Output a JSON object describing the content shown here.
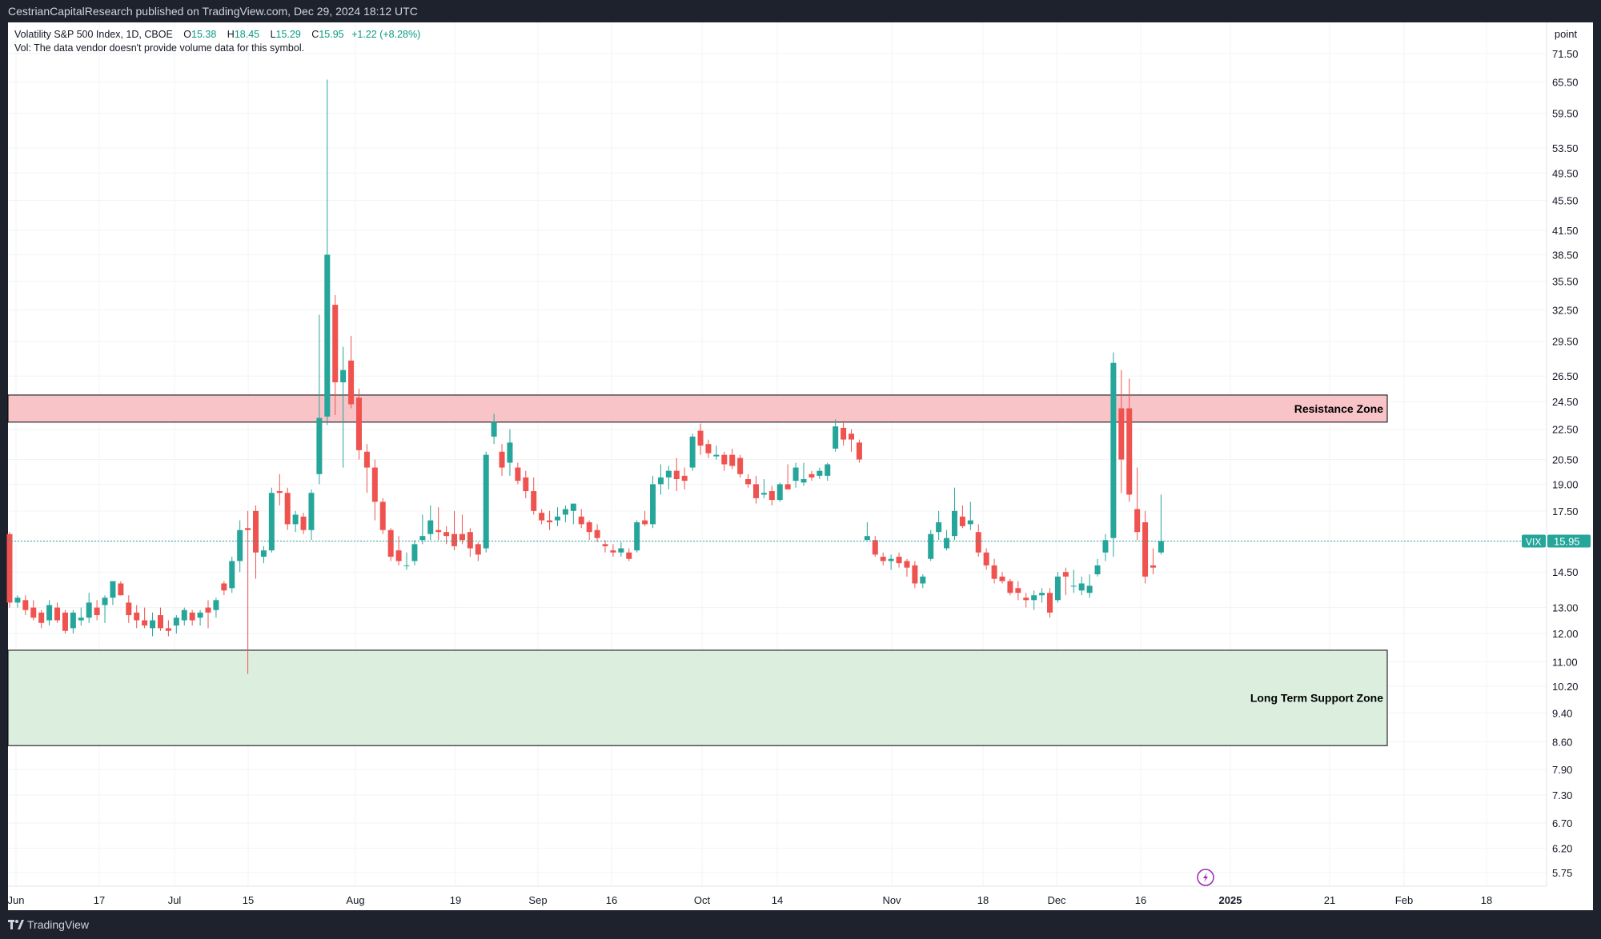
{
  "header": {
    "published": "CestrianCapitalResearch published on TradingView.com, Dec 29, 2024 18:12 UTC"
  },
  "legend": {
    "symbol": "Volatility S&P 500 Index, 1D, CBOE",
    "open_label": "O",
    "open": "15.38",
    "high_label": "H",
    "high": "18.45",
    "low_label": "L",
    "low": "15.29",
    "close_label": "C",
    "close": "15.95",
    "change": "+1.22 (+8.28%)",
    "vol_note": "Vol: The data vendor doesn't provide volume data for this symbol."
  },
  "footer": {
    "brand": "TradingView"
  },
  "price_tag": {
    "ticker": "VIX",
    "value": "15.95"
  },
  "colors": {
    "up": "#26a69a",
    "down": "#ef5350",
    "resistance_fill": "#f8c4c8",
    "support_fill": "#dcefdf",
    "price_line": "#26a69a"
  },
  "chart_data": {
    "type": "candlestick",
    "title": "Volatility S&P 500 Index, 1D, CBOE",
    "y_axis_unit": "point",
    "y_scale": "log",
    "y_ticks": [
      "71.50",
      "65.50",
      "59.50",
      "53.50",
      "49.50",
      "45.50",
      "41.50",
      "38.50",
      "35.50",
      "32.50",
      "29.50",
      "26.50",
      "24.50",
      "22.50",
      "20.50",
      "19.00",
      "17.50",
      "15.95",
      "14.50",
      "13.00",
      "12.00",
      "11.00",
      "10.20",
      "9.40",
      "8.60",
      "7.90",
      "7.30",
      "6.70",
      "6.20",
      "5.75"
    ],
    "x_tick_labels": [
      "Jun",
      "17",
      "Jul",
      "15",
      "Aug",
      "19",
      "Sep",
      "16",
      "Oct",
      "14",
      "Nov",
      "18",
      "Dec",
      "16",
      "2025",
      "21",
      "Feb",
      "18"
    ],
    "zones": [
      {
        "label": "Resistance Zone",
        "low": 23.0,
        "high": 25.0
      },
      {
        "label": "Long Term Support Zone",
        "low": 8.5,
        "high": 11.4
      }
    ],
    "last_price": 15.95,
    "candles": [
      [
        16.3,
        16.4,
        13.0,
        13.2
      ],
      [
        13.2,
        13.5,
        13.0,
        13.4
      ],
      [
        13.3,
        13.5,
        12.7,
        12.9
      ],
      [
        13.0,
        13.3,
        12.5,
        12.6
      ],
      [
        12.8,
        12.9,
        12.2,
        12.4
      ],
      [
        12.5,
        13.3,
        12.3,
        13.1
      ],
      [
        13.0,
        13.2,
        12.4,
        12.5
      ],
      [
        12.8,
        12.9,
        12.0,
        12.1
      ],
      [
        12.2,
        12.9,
        12.0,
        12.8
      ],
      [
        12.5,
        13.0,
        12.3,
        12.6
      ],
      [
        12.6,
        13.6,
        12.4,
        13.2
      ],
      [
        13.0,
        13.3,
        12.5,
        12.7
      ],
      [
        13.1,
        13.5,
        12.4,
        13.4
      ],
      [
        13.4,
        14.0,
        13.1,
        14.1
      ],
      [
        14.0,
        14.1,
        13.5,
        13.5
      ],
      [
        13.2,
        13.5,
        12.4,
        12.7
      ],
      [
        12.8,
        13.1,
        12.2,
        12.5
      ],
      [
        12.5,
        13.0,
        12.2,
        12.3
      ],
      [
        12.2,
        12.8,
        11.9,
        12.5
      ],
      [
        12.7,
        13.0,
        12.1,
        12.2
      ],
      [
        12.2,
        12.5,
        11.9,
        12.1
      ],
      [
        12.3,
        12.7,
        12.0,
        12.6
      ],
      [
        12.5,
        13.0,
        12.3,
        12.9
      ],
      [
        12.8,
        12.9,
        12.3,
        12.5
      ],
      [
        12.6,
        12.9,
        12.3,
        12.8
      ],
      [
        13.0,
        13.3,
        12.2,
        12.8
      ],
      [
        12.9,
        13.4,
        12.6,
        13.3
      ],
      [
        14.0,
        14.1,
        13.5,
        13.7
      ],
      [
        13.8,
        15.2,
        13.6,
        15.0
      ],
      [
        15.0,
        17.0,
        14.5,
        16.5
      ],
      [
        16.6,
        17.5,
        10.6,
        16.5
      ],
      [
        17.5,
        17.8,
        14.2,
        15.4
      ],
      [
        15.2,
        15.7,
        14.9,
        15.5
      ],
      [
        15.5,
        18.8,
        15.4,
        18.5
      ],
      [
        18.6,
        19.6,
        17.8,
        18.5
      ],
      [
        18.5,
        18.8,
        16.5,
        16.8
      ],
      [
        16.8,
        17.5,
        16.4,
        17.3
      ],
      [
        17.2,
        17.4,
        16.3,
        16.5
      ],
      [
        16.5,
        18.7,
        16.0,
        18.5
      ],
      [
        19.6,
        32.0,
        19.0,
        23.3
      ],
      [
        23.4,
        66.0,
        22.8,
        38.5
      ],
      [
        33.0,
        34.0,
        23.5,
        26.0
      ],
      [
        26.0,
        29.0,
        20.0,
        27.0
      ],
      [
        27.8,
        30.0,
        24.0,
        24.3
      ],
      [
        24.8,
        25.5,
        20.5,
        21.1
      ],
      [
        21.0,
        21.5,
        18.5,
        20.0
      ],
      [
        20.0,
        20.5,
        17.0,
        18.0
      ],
      [
        18.0,
        18.2,
        16.3,
        16.5
      ],
      [
        16.5,
        16.6,
        15.0,
        15.2
      ],
      [
        15.5,
        16.2,
        14.8,
        15.0
      ],
      [
        14.8,
        15.4,
        14.6,
        14.8
      ],
      [
        15.0,
        16.0,
        14.8,
        15.8
      ],
      [
        16.0,
        17.3,
        15.8,
        16.2
      ],
      [
        16.3,
        17.8,
        16.0,
        17.0
      ],
      [
        16.5,
        17.7,
        16.0,
        16.4
      ],
      [
        16.4,
        16.7,
        15.8,
        16.2
      ],
      [
        16.3,
        17.5,
        15.5,
        15.7
      ],
      [
        16.3,
        17.3,
        15.8,
        16.0
      ],
      [
        16.4,
        16.6,
        15.2,
        15.6
      ],
      [
        15.8,
        15.9,
        15.0,
        15.3
      ],
      [
        15.6,
        21.0,
        15.4,
        20.8
      ],
      [
        22.0,
        23.6,
        21.5,
        23.0
      ],
      [
        21.0,
        21.5,
        19.5,
        20.0
      ],
      [
        20.3,
        22.5,
        19.5,
        21.6
      ],
      [
        20.0,
        20.3,
        19.0,
        19.2
      ],
      [
        19.4,
        19.8,
        18.2,
        18.6
      ],
      [
        18.6,
        19.4,
        17.3,
        17.5
      ],
      [
        17.4,
        17.6,
        16.8,
        17.0
      ],
      [
        17.0,
        17.5,
        16.5,
        16.9
      ],
      [
        17.0,
        17.7,
        16.7,
        17.2
      ],
      [
        17.3,
        17.8,
        16.9,
        17.6
      ],
      [
        17.5,
        17.9,
        16.8,
        17.9
      ],
      [
        17.2,
        17.6,
        16.6,
        16.8
      ],
      [
        16.9,
        17.0,
        16.0,
        16.4
      ],
      [
        16.5,
        16.8,
        15.9,
        16.1
      ],
      [
        15.8,
        16.0,
        15.4,
        15.7
      ],
      [
        15.5,
        15.8,
        15.2,
        15.4
      ],
      [
        15.4,
        15.9,
        15.2,
        15.6
      ],
      [
        15.4,
        15.6,
        15.0,
        15.1
      ],
      [
        15.5,
        17.0,
        15.4,
        16.9
      ],
      [
        17.0,
        17.5,
        16.7,
        16.8
      ],
      [
        16.8,
        19.5,
        16.6,
        19.0
      ],
      [
        19.0,
        20.2,
        18.4,
        19.4
      ],
      [
        19.4,
        20.1,
        18.7,
        19.8
      ],
      [
        19.8,
        20.6,
        18.6,
        19.3
      ],
      [
        19.5,
        20.0,
        18.7,
        19.2
      ],
      [
        20.0,
        22.2,
        19.8,
        22.0
      ],
      [
        22.4,
        22.9,
        20.8,
        21.4
      ],
      [
        21.5,
        21.8,
        20.6,
        20.9
      ],
      [
        20.7,
        21.4,
        20.5,
        20.8
      ],
      [
        20.8,
        21.0,
        19.8,
        20.2
      ],
      [
        20.8,
        21.2,
        19.9,
        20.1
      ],
      [
        20.6,
        20.8,
        19.4,
        19.6
      ],
      [
        19.3,
        19.6,
        18.8,
        19.0
      ],
      [
        19.0,
        19.5,
        17.9,
        18.2
      ],
      [
        18.4,
        19.3,
        18.2,
        18.5
      ],
      [
        18.6,
        18.9,
        17.8,
        18.1
      ],
      [
        18.1,
        19.1,
        18.0,
        19.0
      ],
      [
        19.0,
        20.2,
        18.8,
        18.7
      ],
      [
        19.2,
        20.3,
        18.8,
        20.0
      ],
      [
        19.1,
        20.3,
        18.9,
        19.3
      ],
      [
        19.6,
        19.8,
        19.2,
        19.4
      ],
      [
        19.5,
        20.0,
        19.3,
        19.8
      ],
      [
        19.5,
        20.3,
        19.2,
        20.2
      ],
      [
        21.2,
        23.2,
        21.0,
        22.7
      ],
      [
        22.6,
        23.1,
        21.4,
        21.8
      ],
      [
        22.2,
        22.5,
        21.0,
        21.8
      ],
      [
        21.6,
        21.8,
        20.3,
        20.5
      ],
      [
        16.0,
        16.9,
        16.0,
        16.2
      ],
      [
        16.0,
        16.2,
        15.2,
        15.3
      ],
      [
        15.2,
        15.4,
        14.8,
        15.0
      ],
      [
        15.0,
        15.3,
        14.6,
        15.1
      ],
      [
        15.2,
        15.4,
        14.7,
        14.9
      ],
      [
        15.0,
        15.1,
        14.3,
        14.7
      ],
      [
        14.8,
        15.0,
        13.8,
        14.0
      ],
      [
        14.0,
        14.4,
        13.8,
        14.3
      ],
      [
        15.1,
        16.5,
        15.0,
        16.3
      ],
      [
        16.4,
        17.5,
        16.0,
        16.9
      ],
      [
        15.6,
        16.5,
        15.5,
        16.1
      ],
      [
        16.2,
        18.8,
        16.0,
        17.5
      ],
      [
        17.2,
        17.8,
        16.6,
        16.7
      ],
      [
        16.8,
        18.0,
        16.5,
        17.0
      ],
      [
        16.4,
        16.8,
        15.2,
        15.4
      ],
      [
        15.4,
        15.6,
        14.6,
        14.8
      ],
      [
        14.8,
        15.1,
        14.0,
        14.2
      ],
      [
        14.3,
        14.5,
        14.0,
        14.1
      ],
      [
        14.1,
        14.2,
        13.5,
        13.6
      ],
      [
        13.8,
        14.1,
        13.3,
        13.6
      ],
      [
        13.4,
        13.6,
        13.0,
        13.3
      ],
      [
        13.3,
        13.7,
        12.9,
        13.5
      ],
      [
        13.5,
        13.8,
        13.2,
        13.6
      ],
      [
        13.6,
        13.8,
        12.6,
        12.8
      ],
      [
        13.3,
        14.5,
        13.2,
        14.3
      ],
      [
        14.5,
        14.7,
        13.5,
        14.3
      ],
      [
        13.9,
        14.6,
        13.6,
        13.9
      ],
      [
        13.7,
        14.3,
        13.5,
        14.0
      ],
      [
        13.6,
        14.4,
        13.4,
        13.9
      ],
      [
        14.4,
        15.1,
        14.3,
        14.8
      ],
      [
        15.4,
        16.3,
        15.0,
        16.0
      ],
      [
        16.1,
        28.5,
        15.2,
        27.6
      ],
      [
        24.0,
        27.0,
        18.5,
        20.5
      ],
      [
        24.0,
        26.3,
        18.0,
        18.4
      ],
      [
        17.6,
        20.0,
        16.0,
        16.4
      ],
      [
        16.9,
        17.5,
        14.0,
        14.3
      ],
      [
        14.8,
        15.6,
        14.4,
        14.7
      ],
      [
        15.4,
        18.4,
        15.3,
        15.95
      ]
    ]
  }
}
